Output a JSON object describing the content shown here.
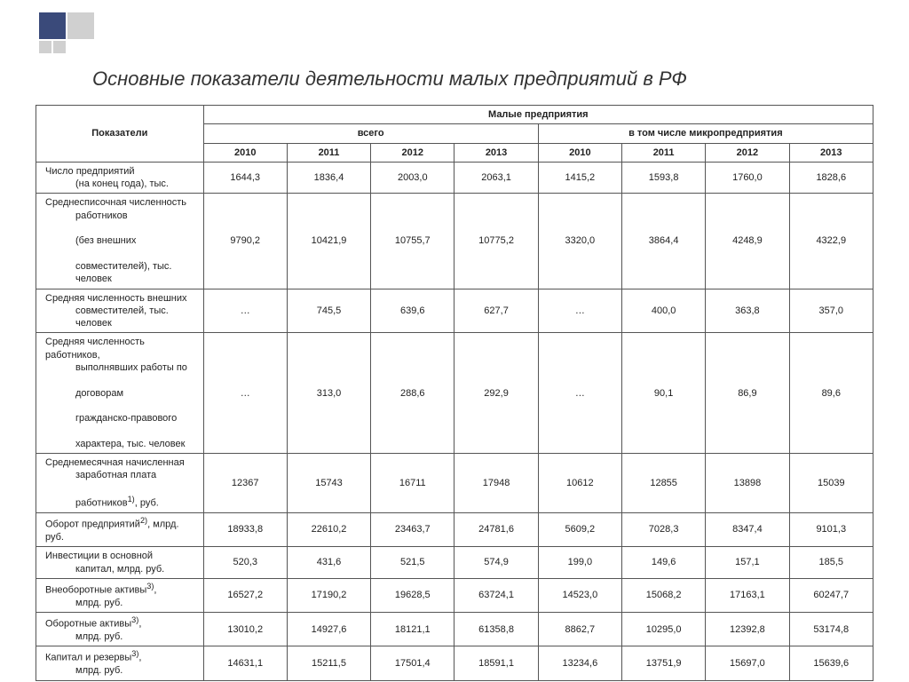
{
  "title": "Основные показатели деятельности малых предприятий в РФ",
  "header": {
    "indicators": "Показатели",
    "group_top": "Малые предприятия",
    "group_total": "всего",
    "group_micro": "в том числе микропредприятия",
    "years_total": [
      "2010",
      "2011",
      "2012",
      "2013"
    ],
    "years_micro": [
      "2010",
      "2011",
      "2012",
      "2013"
    ]
  },
  "rows": [
    {
      "label": "Число предприятий<br><span class='indent'>(на конец года), тыс.</span>",
      "vals": [
        "1644,3",
        "1836,4",
        "2003,0",
        "2063,1",
        "1415,2",
        "1593,8",
        "1760,0",
        "1828,6"
      ]
    },
    {
      "label": "Среднесписочная численность<br><span class='indent'>работников</span><br><span class='indent'>(без внешних</span><br><span class='indent'>совместителей), тыс. человек</span>",
      "vals": [
        "9790,2",
        "10421,9",
        "10755,7",
        "10775,2",
        "3320,0",
        "3864,4",
        "4248,9",
        "4322,9"
      ]
    },
    {
      "label": "Средняя численность внешних<br><span class='indent'>совместителей, тыс. человек</span>",
      "vals": [
        "…",
        "745,5",
        "639,6",
        "627,7",
        "…",
        "400,0",
        "363,8",
        "357,0"
      ]
    },
    {
      "label": "Средняя численность работников,<br><span class='indent'>выполнявших работы по</span><br><span class='indent'>договорам</span><br><span class='indent'>гражданско-правового</span><br><span class='indent'>характера, тыс. человек</span>",
      "vals": [
        "…",
        "313,0",
        "288,6",
        "292,9",
        "…",
        "90,1",
        "86,9",
        "89,6"
      ]
    },
    {
      "label": "Среднемесячная начисленная<br><span class='indent'>заработная плата</span><br><span class='indent'>работников<sup>1)</sup>, руб.</span>",
      "vals": [
        "12367",
        "15743",
        "16711",
        "17948",
        "10612",
        "12855",
        "13898",
        "15039"
      ]
    },
    {
      "label": "Оборот предприятий<sup>2)</sup>, млрд. руб.",
      "vals": [
        "18933,8",
        "22610,2",
        "23463,7",
        "24781,6",
        "5609,2",
        "7028,3",
        "8347,4",
        "9101,3"
      ]
    },
    {
      "label": "Инвестиции в основной<br><span class='indent'>капитал, млрд. руб.</span>",
      "vals": [
        "520,3",
        "431,6",
        "521,5",
        "574,9",
        "199,0",
        "149,6",
        "157,1",
        "185,5"
      ]
    },
    {
      "label": "Внеоборотные активы<sup>3)</sup>,<br><span class='indent'>млрд. руб.</span>",
      "vals": [
        "16527,2",
        "17190,2",
        "19628,5",
        "63724,1",
        "14523,0",
        "15068,2",
        "17163,1",
        "60247,7"
      ]
    },
    {
      "label": "Оборотные активы<sup>3)</sup>,<br><span class='indent'>млрд. руб.</span>",
      "vals": [
        "13010,2",
        "14927,6",
        "18121,1",
        "61358,8",
        "8862,7",
        "10295,0",
        "12392,8",
        "53174,8"
      ]
    },
    {
      "label": "Капитал и резервы<sup>3)</sup>,<br><span class='indent'>млрд. руб.</span>",
      "vals": [
        "14631,1",
        "15211,5",
        "17501,4",
        "18591,1",
        "13234,6",
        "13751,9",
        "15697,0",
        "15639,6"
      ]
    }
  ],
  "styling": {
    "title_color": "#333333",
    "title_fontsize": 22,
    "cell_fontsize": 11,
    "border_color": "#555555",
    "background_color": "#ffffff",
    "deco_dark": "#3a4a7a",
    "deco_light": "#d0d0d0"
  }
}
